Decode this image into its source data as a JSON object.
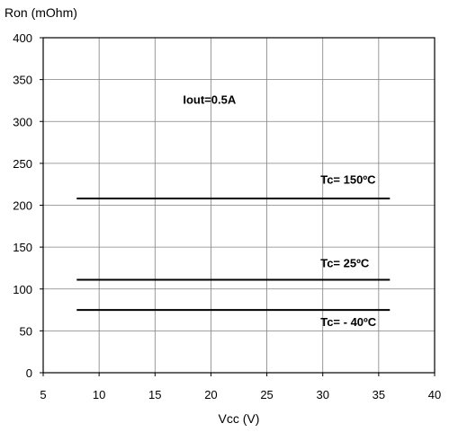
{
  "chart_data": {
    "type": "line",
    "title": "",
    "xlabel": "Vcc (V)",
    "ylabel": "Ron (mOhm)",
    "xlim": [
      5,
      40
    ],
    "ylim": [
      0,
      400
    ],
    "x_ticks": [
      "5",
      "10",
      "15",
      "20",
      "25",
      "30",
      "35",
      "40"
    ],
    "y_ticks": [
      "0",
      "50",
      "100",
      "150",
      "200",
      "250",
      "300",
      "350",
      "400"
    ],
    "grid": true,
    "legend": "none",
    "series": [
      {
        "x": [
          8,
          36
        ],
        "y": [
          208,
          208
        ]
      },
      {
        "x": [
          8,
          36
        ],
        "y": [
          111,
          111
        ]
      },
      {
        "x": [
          8,
          36
        ],
        "y": [
          75,
          75
        ]
      }
    ],
    "annotations": [
      {
        "text": "Iout=0.5A",
        "x": 17.5,
        "y": 321
      },
      {
        "text": "Tc= 150ºC",
        "x": 29.8,
        "y": 226
      },
      {
        "text": "Tc= 25ºC",
        "x": 29.8,
        "y": 126
      },
      {
        "text": "Tc= - 40ºC",
        "x": 29.8,
        "y": 56
      }
    ],
    "colors": {
      "line": "#000000",
      "grid": "#808080",
      "frame": "#000000"
    }
  }
}
